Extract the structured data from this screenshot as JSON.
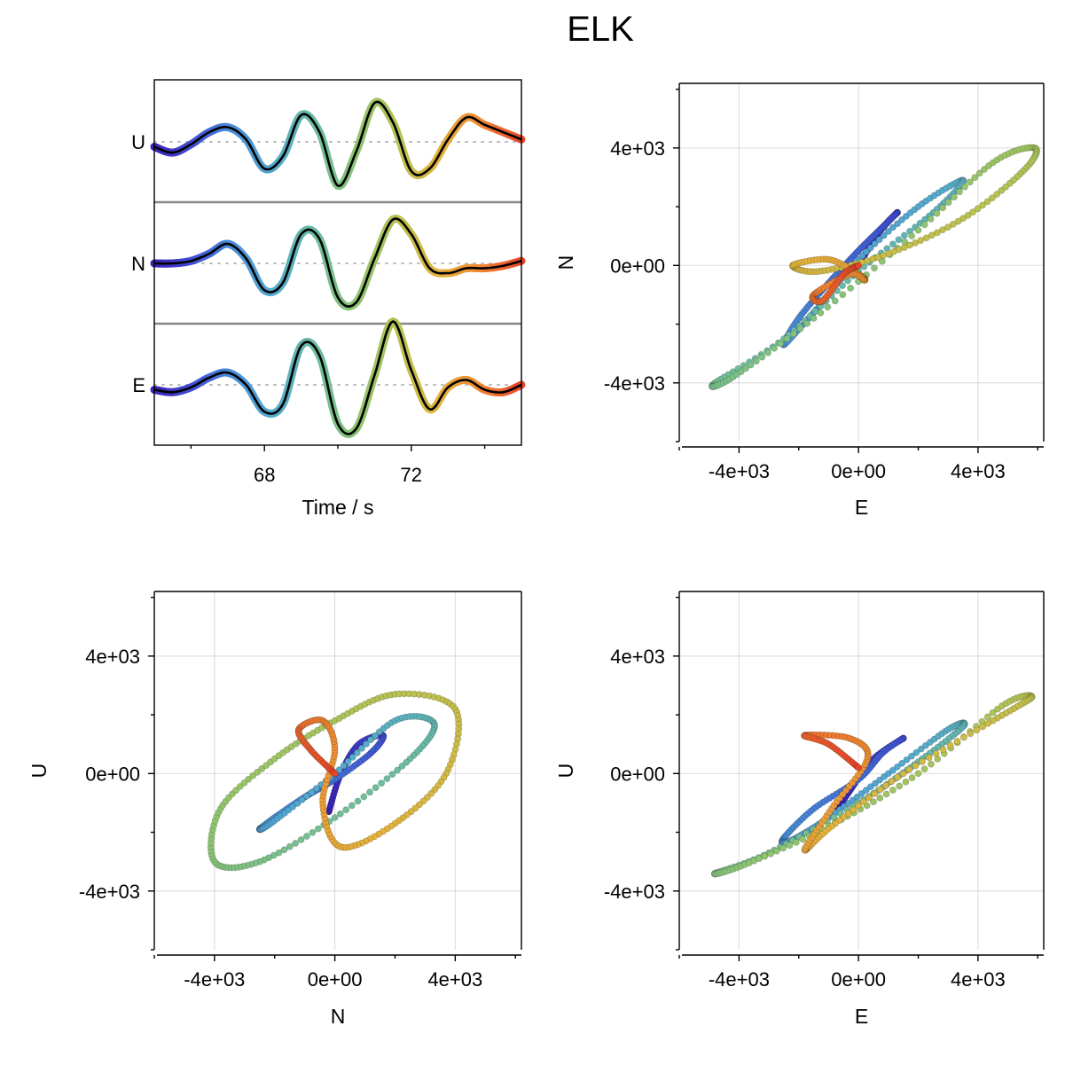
{
  "chart_data": {
    "title": "ELK",
    "panels": [
      {
        "type": "line",
        "xlabel": "Time / s",
        "xlim": [
          65.0,
          75.0
        ],
        "xticks": [
          68,
          72
        ],
        "xtick_labels": [
          "68",
          "72"
        ],
        "traces": [
          {
            "name": "U",
            "t": [
              65.0,
              65.5,
              66.0,
              66.5,
              67.0,
              67.5,
              68.0,
              68.5,
              69.0,
              69.5,
              70.0,
              70.5,
              71.0,
              71.5,
              72.0,
              72.5,
              73.0,
              73.5,
              74.0,
              74.5,
              75.0
            ],
            "amp": [
              -0.1,
              -0.22,
              -0.05,
              0.2,
              0.3,
              0.05,
              -0.55,
              -0.3,
              0.55,
              0.2,
              -0.9,
              -0.2,
              0.8,
              0.4,
              -0.6,
              -0.55,
              0.05,
              0.5,
              0.35,
              0.2,
              0.05
            ]
          },
          {
            "name": "N",
            "t": [
              65.0,
              65.5,
              66.0,
              66.5,
              67.0,
              67.5,
              68.0,
              68.5,
              69.0,
              69.5,
              70.0,
              70.5,
              71.0,
              71.5,
              72.0,
              72.5,
              73.0,
              73.5,
              74.0,
              74.5,
              75.0
            ],
            "amp": [
              0.0,
              0.0,
              0.05,
              0.2,
              0.4,
              0.1,
              -0.55,
              -0.4,
              0.6,
              0.5,
              -0.7,
              -0.8,
              0.1,
              0.9,
              0.6,
              -0.1,
              -0.2,
              -0.1,
              -0.1,
              -0.05,
              0.05
            ]
          },
          {
            "name": "E",
            "t": [
              65.0,
              65.5,
              66.0,
              66.5,
              67.0,
              67.5,
              68.0,
              68.5,
              69.0,
              69.5,
              70.0,
              70.5,
              71.0,
              71.5,
              72.0,
              72.5,
              73.0,
              73.5,
              74.0,
              74.5,
              75.0
            ],
            "amp": [
              -0.1,
              -0.15,
              -0.05,
              0.15,
              0.25,
              0.0,
              -0.55,
              -0.4,
              0.8,
              0.6,
              -0.8,
              -0.9,
              0.2,
              1.3,
              0.3,
              -0.5,
              -0.05,
              0.1,
              -0.1,
              -0.15,
              0.0
            ]
          }
        ]
      },
      {
        "type": "scatter",
        "xlabel": "E",
        "ylabel": "N",
        "xlim": [
          -6000,
          6200
        ],
        "ylim": [
          -6000,
          6200
        ],
        "ticks": [
          -4000,
          0,
          4000
        ],
        "tick_labels": [
          "-4e+03",
          "0e+00",
          "4e+03"
        ],
        "path": [
          [
            0,
            0
          ],
          [
            600,
            1000
          ],
          [
            1000,
            1500
          ],
          [
            1300,
            1800
          ],
          [
            800,
            1300
          ],
          [
            0,
            500
          ],
          [
            -1000,
            -600
          ],
          [
            -2000,
            -1800
          ],
          [
            -2500,
            -2700
          ],
          [
            -1500,
            -1600
          ],
          [
            0,
            200
          ],
          [
            2000,
            2000
          ],
          [
            3500,
            2900
          ],
          [
            2500,
            1800
          ],
          [
            0,
            -200
          ],
          [
            -2500,
            -2500
          ],
          [
            -4800,
            -4000
          ],
          [
            -4200,
            -3800
          ],
          [
            -1500,
            -1800
          ],
          [
            2000,
            1200
          ],
          [
            4500,
            3500
          ],
          [
            5900,
            4000
          ],
          [
            5500,
            3200
          ],
          [
            3500,
            1600
          ],
          [
            1000,
            400
          ],
          [
            -1300,
            -200
          ],
          [
            -2200,
            0
          ],
          [
            -1000,
            200
          ],
          [
            0,
            -300
          ],
          [
            200,
            -500
          ],
          [
            -300,
            -300
          ],
          [
            -1500,
            -1000
          ],
          [
            -1200,
            -1200
          ],
          [
            -500,
            -300
          ],
          [
            0,
            0
          ]
        ],
        "colors": [
          "#3b1fb3",
          "#4050d6",
          "#4a90d8",
          "#55aacc",
          "#6cbd9e",
          "#8ec470",
          "#b8c252",
          "#e3b23c",
          "#f08a32",
          "#e8442a"
        ]
      },
      {
        "type": "scatter",
        "xlabel": "N",
        "ylabel": "U",
        "xlim": [
          -6000,
          6200
        ],
        "ylim": [
          -6000,
          6200
        ],
        "ticks": [
          -4000,
          0,
          4000
        ],
        "tick_labels": [
          "-4e+03",
          "0e+00",
          "4e+03"
        ],
        "path": [
          [
            -200,
            -1300
          ],
          [
            200,
            0
          ],
          [
            800,
            1000
          ],
          [
            1600,
            1300
          ],
          [
            1200,
            700
          ],
          [
            0,
            -200
          ],
          [
            -1000,
            -800
          ],
          [
            -2000,
            -1500
          ],
          [
            -2500,
            -1900
          ],
          [
            -2000,
            -1600
          ],
          [
            0,
            0
          ],
          [
            2000,
            1800
          ],
          [
            3300,
            1700
          ],
          [
            2500,
            500
          ],
          [
            0,
            -1500
          ],
          [
            -2500,
            -3000
          ],
          [
            -4000,
            -3000
          ],
          [
            -3800,
            -1200
          ],
          [
            -2000,
            500
          ],
          [
            0,
            1800
          ],
          [
            2000,
            2700
          ],
          [
            4000,
            2200
          ],
          [
            3700,
            0
          ],
          [
            2000,
            -1700
          ],
          [
            200,
            -2500
          ],
          [
            -400,
            -1000
          ],
          [
            0,
            800
          ],
          [
            -400,
            1800
          ],
          [
            -1200,
            1500
          ],
          [
            -800,
            800
          ],
          [
            0,
            0
          ]
        ],
        "colors": [
          "#3b1fb3",
          "#4050d6",
          "#4a90d8",
          "#55aacc",
          "#6cbd9e",
          "#8ec470",
          "#b8c252",
          "#e3b23c",
          "#f08a32",
          "#e8442a"
        ]
      },
      {
        "type": "scatter",
        "xlabel": "E",
        "ylabel": "U",
        "xlim": [
          -6000,
          6200
        ],
        "ylim": [
          -6000,
          6200
        ],
        "ticks": [
          -4000,
          0,
          4000
        ],
        "tick_labels": [
          "-4e+03",
          "0e+00",
          "4e+03"
        ],
        "path": [
          [
            -700,
            -1200
          ],
          [
            -300,
            -600
          ],
          [
            500,
            500
          ],
          [
            1500,
            1200
          ],
          [
            800,
            700
          ],
          [
            0,
            -200
          ],
          [
            -1500,
            -1200
          ],
          [
            -2500,
            -2200
          ],
          [
            -2300,
            -2300
          ],
          [
            -1000,
            -1500
          ],
          [
            1000,
            0
          ],
          [
            3000,
            1500
          ],
          [
            3500,
            1600
          ],
          [
            2000,
            400
          ],
          [
            0,
            -1000
          ],
          [
            -3000,
            -2700
          ],
          [
            -4800,
            -3400
          ],
          [
            -3800,
            -3100
          ],
          [
            -1000,
            -1800
          ],
          [
            2000,
            0
          ],
          [
            4800,
            2300
          ],
          [
            5800,
            2600
          ],
          [
            4500,
            1800
          ],
          [
            1500,
            0
          ],
          [
            -900,
            -1800
          ],
          [
            -1800,
            -2600
          ],
          [
            -900,
            -1200
          ],
          [
            300,
            500
          ],
          [
            -300,
            1200
          ],
          [
            -1800,
            1300
          ],
          [
            -1000,
            1000
          ],
          [
            0,
            200
          ]
        ],
        "colors": [
          "#3b1fb3",
          "#4050d6",
          "#4a90d8",
          "#55aacc",
          "#6cbd9e",
          "#8ec470",
          "#b8c252",
          "#e3b23c",
          "#f08a32",
          "#e8442a"
        ]
      }
    ]
  }
}
